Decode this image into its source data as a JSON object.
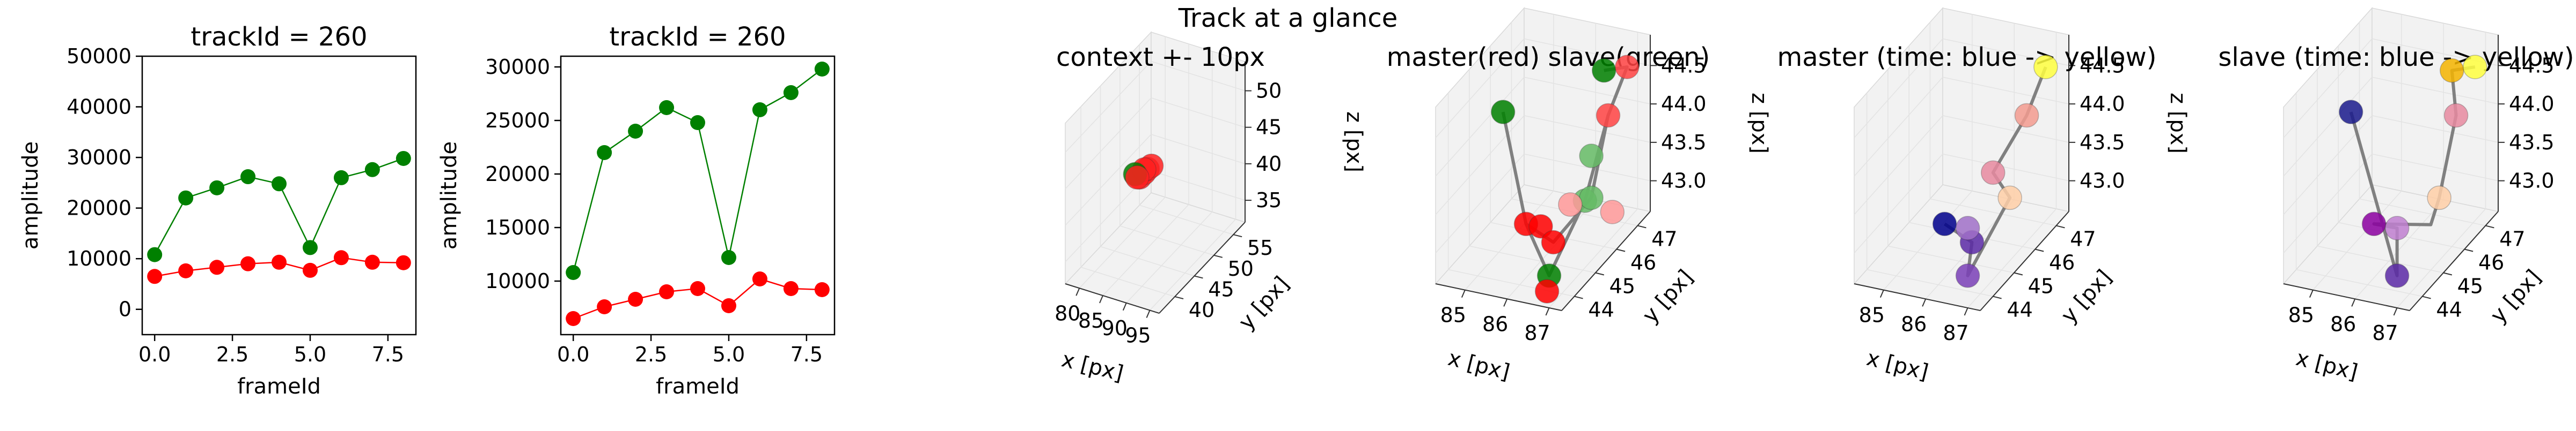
{
  "suptitle": "Track at a glance",
  "colors": {
    "master": "#ff0000",
    "slave": "#008000",
    "axes": "#000000",
    "grid_pane": "#f2f2f2",
    "line_3d": "#808080",
    "cmap_low": "#00008b",
    "cmap_mid": "#8b008b",
    "cmap_high": "#ffff00"
  },
  "chart_data": [
    {
      "type": "line",
      "title": "trackId = 260",
      "xlabel": "frameId",
      "ylabel": "amplitude",
      "xlim": [
        -0.4,
        8.4
      ],
      "ylim": [
        -5000,
        50000
      ],
      "xticks": [
        "0.0",
        "2.5",
        "5.0",
        "7.5"
      ],
      "xtick_values": [
        0,
        2.5,
        5,
        7.5
      ],
      "yticks": [
        "0",
        "10000",
        "20000",
        "30000",
        "40000",
        "50000"
      ],
      "ytick_values": [
        0,
        10000,
        20000,
        30000,
        40000,
        50000
      ],
      "x": [
        0,
        1,
        2,
        3,
        4,
        5,
        6,
        7,
        8
      ],
      "series": [
        {
          "color": "#008000",
          "values": [
            10800,
            22000,
            24000,
            26200,
            24800,
            12200,
            26000,
            27600,
            29800
          ]
        },
        {
          "color": "#ff0000",
          "values": [
            6500,
            7600,
            8300,
            9000,
            9300,
            7700,
            10200,
            9300,
            9200
          ]
        }
      ]
    },
    {
      "type": "line",
      "title": "trackId = 260",
      "xlabel": "frameId",
      "ylabel": "amplitude",
      "xlim": [
        -0.4,
        8.4
      ],
      "ylim": [
        5000,
        31000
      ],
      "xticks": [
        "0.0",
        "2.5",
        "5.0",
        "7.5"
      ],
      "xtick_values": [
        0,
        2.5,
        5,
        7.5
      ],
      "yticks": [
        "10000",
        "15000",
        "20000",
        "25000",
        "30000"
      ],
      "ytick_values": [
        10000,
        15000,
        20000,
        25000,
        30000
      ],
      "x": [
        0,
        1,
        2,
        3,
        4,
        5,
        6,
        7,
        8
      ],
      "series": [
        {
          "color": "#008000",
          "values": [
            10800,
            22000,
            24000,
            26200,
            24800,
            12200,
            26000,
            27600,
            29800
          ]
        },
        {
          "color": "#ff0000",
          "values": [
            6500,
            7600,
            8300,
            9000,
            9300,
            7700,
            10200,
            9300,
            9200
          ]
        }
      ]
    },
    {
      "type": "scatter3d",
      "title": "context +- 10px",
      "xlabel": "x [px]",
      "ylabel": "y [px]",
      "zlabel": "z [px]",
      "xlim": [
        77,
        97
      ],
      "ylim": [
        36,
        58
      ],
      "zlim": [
        32,
        54
      ],
      "xticks": [
        "80",
        "85",
        "90",
        "95"
      ],
      "xtick_values": [
        80,
        85,
        90,
        95
      ],
      "yticks": [
        "40",
        "45",
        "50",
        "55"
      ],
      "ytick_values": [
        40,
        45,
        50,
        55
      ],
      "zticks": [
        "35",
        "40",
        "45",
        "50"
      ],
      "ztick_values": [
        35,
        40,
        45,
        50
      ],
      "points": [
        {
          "x": 85.2,
          "y": 45.2,
          "z": 43.0,
          "color": "#ff2020"
        },
        {
          "x": 85.8,
          "y": 45.6,
          "z": 43.5,
          "color": "#ff2020"
        },
        {
          "x": 86.3,
          "y": 45.9,
          "z": 44.0,
          "color": "#ff2020"
        },
        {
          "x": 86.8,
          "y": 46.3,
          "z": 44.3,
          "color": "#ff2020"
        },
        {
          "x": 85.5,
          "y": 46.0,
          "z": 43.7,
          "color": "#ff2020"
        },
        {
          "x": 84.4,
          "y": 45.0,
          "z": 43.4,
          "color": "#008000"
        },
        {
          "x": 85.0,
          "y": 44.8,
          "z": 43.2,
          "color": "#ff2020"
        }
      ]
    },
    {
      "type": "scatter3d",
      "title": "master(red) slave(green)",
      "xlabel": "x [px]",
      "ylabel": "y [px]",
      "zlabel": "z [px]",
      "xlim": [
        84.3,
        87.3
      ],
      "ylim": [
        43.4,
        47.6
      ],
      "zlim": [
        42.6,
        44.9
      ],
      "xticks": [
        "85",
        "86",
        "87"
      ],
      "xtick_values": [
        85,
        86,
        87
      ],
      "yticks": [
        "44",
        "45",
        "46",
        "47"
      ],
      "ytick_values": [
        44,
        45,
        46,
        47
      ],
      "zticks": [
        "43.0",
        "43.5",
        "44.0",
        "44.5"
      ],
      "ztick_values": [
        43,
        43.5,
        44,
        44.5
      ],
      "lines": [
        [
          [
            84.5,
            46.2,
            44.0
          ],
          [
            86.0,
            44.3,
            43.3
          ],
          [
            86.6,
            44.4,
            43.1
          ],
          [
            86.7,
            46.0,
            43.2
          ],
          [
            86.8,
            46.6,
            44.1
          ],
          [
            87.0,
            47.1,
            44.6
          ],
          [
            86.6,
            46.8,
            44.6
          ]
        ],
        [
          [
            86.0,
            44.3,
            43.3
          ],
          [
            86.7,
            44.0,
            42.8
          ],
          [
            86.9,
            45.3,
            43.4
          ],
          [
            86.8,
            46.6,
            44.1
          ]
        ]
      ],
      "points": [
        {
          "x": 84.5,
          "y": 46.2,
          "z": 44.0,
          "color": "#008000"
        },
        {
          "x": 86.0,
          "y": 44.3,
          "z": 43.3,
          "color": "#ff0000"
        },
        {
          "x": 86.2,
          "y": 44.6,
          "z": 43.2,
          "color": "#ff0000"
        },
        {
          "x": 86.6,
          "y": 44.4,
          "z": 43.1,
          "color": "#ff0000"
        },
        {
          "x": 86.7,
          "y": 44.0,
          "z": 42.8,
          "color": "#008000"
        },
        {
          "x": 86.8,
          "y": 43.7,
          "z": 42.7,
          "color": "#ff0000"
        },
        {
          "x": 86.9,
          "y": 45.3,
          "z": 43.4,
          "color": "#66bb66"
        },
        {
          "x": 86.7,
          "y": 46.0,
          "z": 43.2,
          "color": "#66bb66"
        },
        {
          "x": 86.8,
          "y": 46.6,
          "z": 44.1,
          "color": "#ff4444"
        },
        {
          "x": 86.6,
          "y": 46.8,
          "z": 44.6,
          "color": "#008000"
        },
        {
          "x": 87.0,
          "y": 47.1,
          "z": 44.6,
          "color": "#ff4444"
        },
        {
          "x": 86.5,
          "y": 46.4,
          "z": 43.6,
          "color": "#66bb66"
        },
        {
          "x": 87.1,
          "y": 46.2,
          "z": 43.0,
          "color": "#ff9999"
        },
        {
          "x": 86.4,
          "y": 45.6,
          "z": 43.2,
          "color": "#ff9999"
        }
      ]
    },
    {
      "type": "scatter3d",
      "title": "master (time: blue -> yellow)",
      "xlabel": "x [px]",
      "ylabel": "y [px]",
      "zlabel": "z [px]",
      "xlim": [
        84.3,
        87.3
      ],
      "ylim": [
        43.4,
        47.6
      ],
      "zlim": [
        42.6,
        44.9
      ],
      "xticks": [
        "85",
        "86",
        "87"
      ],
      "xtick_values": [
        85,
        86,
        87
      ],
      "yticks": [
        "44",
        "45",
        "46",
        "47"
      ],
      "ytick_values": [
        44,
        45,
        46,
        47
      ],
      "zticks": [
        "43.0",
        "43.5",
        "44.0",
        "44.5"
      ],
      "ztick_values": [
        43,
        43.5,
        44,
        44.5
      ],
      "lines": [
        [
          [
            86.0,
            44.3,
            43.3
          ],
          [
            86.6,
            44.4,
            43.1
          ],
          [
            86.7,
            44.0,
            42.8
          ],
          [
            86.7,
            46.0,
            43.2
          ],
          [
            86.6,
            45.4,
            43.7
          ],
          [
            86.8,
            46.6,
            44.1
          ],
          [
            87.0,
            47.1,
            44.6
          ]
        ]
      ],
      "points": [
        {
          "x": 86.0,
          "y": 44.3,
          "z": 43.3,
          "color": "#00008b"
        },
        {
          "x": 86.6,
          "y": 44.4,
          "z": 43.1,
          "color": "#5b2aa6"
        },
        {
          "x": 86.7,
          "y": 44.0,
          "z": 42.8,
          "color": "#7b40b8"
        },
        {
          "x": 86.4,
          "y": 44.6,
          "z": 43.2,
          "color": "#a070c8"
        },
        {
          "x": 86.7,
          "y": 46.0,
          "z": 43.2,
          "color": "#ffcfa8"
        },
        {
          "x": 86.6,
          "y": 45.4,
          "z": 43.7,
          "color": "#e88aa0"
        },
        {
          "x": 86.8,
          "y": 46.6,
          "z": 44.1,
          "color": "#f49c90"
        },
        {
          "x": 87.0,
          "y": 47.1,
          "z": 44.6,
          "color": "#ffff40"
        }
      ]
    },
    {
      "type": "scatter3d",
      "title": "slave (time: blue -> yellow)",
      "xlabel": "x [px]",
      "ylabel": "y [px]",
      "zlabel": "z [px]",
      "xlim": [
        84.3,
        87.3
      ],
      "ylim": [
        43.4,
        47.6
      ],
      "zlim": [
        42.6,
        44.9
      ],
      "xticks": [
        "85",
        "86",
        "87"
      ],
      "xtick_values": [
        85,
        86,
        87
      ],
      "yticks": [
        "44",
        "45",
        "46",
        "47"
      ],
      "ytick_values": [
        44,
        45,
        46,
        47
      ],
      "zticks": [
        "43.0",
        "43.5",
        "44.0",
        "44.5"
      ],
      "ztick_values": [
        43,
        43.5,
        44,
        44.5
      ],
      "lines": [
        [
          [
            84.5,
            46.2,
            44.0
          ],
          [
            86.7,
            44.0,
            42.8
          ],
          [
            86.4,
            44.6,
            43.2
          ],
          [
            86.0,
            44.3,
            43.3
          ],
          [
            86.6,
            45.8,
            42.9
          ],
          [
            86.7,
            46.0,
            43.2
          ],
          [
            86.8,
            46.6,
            44.1
          ],
          [
            86.6,
            46.8,
            44.6
          ],
          [
            87.0,
            47.1,
            44.6
          ]
        ]
      ],
      "points": [
        {
          "x": 84.5,
          "y": 46.2,
          "z": 44.0,
          "color": "#1a1a8c"
        },
        {
          "x": 86.7,
          "y": 44.0,
          "z": 42.8,
          "color": "#5b2aa6"
        },
        {
          "x": 86.0,
          "y": 44.3,
          "z": 43.3,
          "color": "#8b00a0"
        },
        {
          "x": 86.4,
          "y": 44.6,
          "z": 43.2,
          "color": "#c080d0"
        },
        {
          "x": 86.7,
          "y": 46.0,
          "z": 43.2,
          "color": "#ffcfa8"
        },
        {
          "x": 86.8,
          "y": 46.6,
          "z": 44.1,
          "color": "#e88aa0"
        },
        {
          "x": 86.6,
          "y": 46.8,
          "z": 44.6,
          "color": "#f5b400"
        },
        {
          "x": 87.0,
          "y": 47.1,
          "z": 44.6,
          "color": "#ffff40"
        }
      ]
    }
  ]
}
